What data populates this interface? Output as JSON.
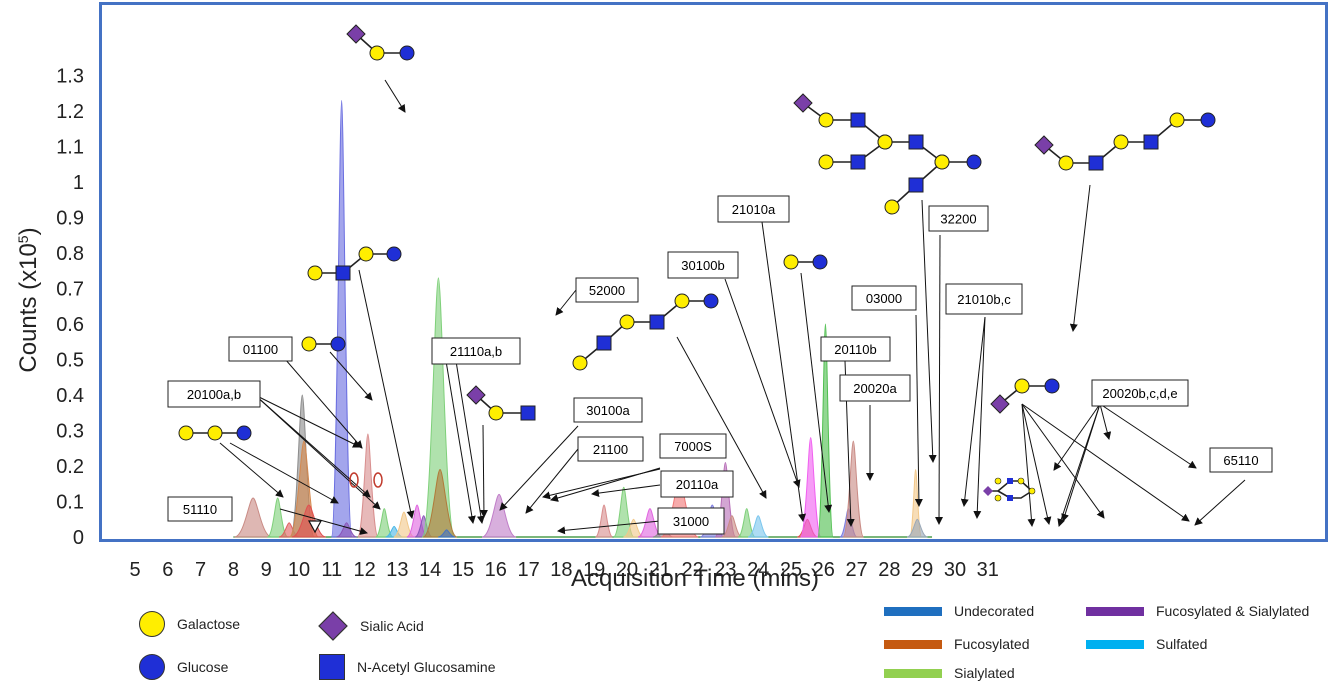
{
  "chart_data": {
    "type": "area",
    "xlabel": "Acquisition Time (mins)",
    "ylabel": "Counts (x10",
    "ylabel_sup": "5",
    "ylabel_end": ")",
    "xlim": [
      5,
      31
    ],
    "ylim": [
      0,
      1.3
    ],
    "x_ticks": [
      "5",
      "6",
      "7",
      "8",
      "9",
      "10",
      "11",
      "12",
      "13",
      "14",
      "15",
      "16",
      "17",
      "18",
      "19",
      "20",
      "21",
      "22",
      "23",
      "24",
      "25",
      "26",
      "27",
      "28",
      "29",
      "30",
      "31"
    ],
    "y_ticks": [
      "0",
      "0.1",
      "0.2",
      "0.3",
      "0.4",
      "0.5",
      "0.6",
      "0.7",
      "0.8",
      "0.9",
      "1",
      "1.1",
      "1.2",
      "1.3"
    ],
    "peaks": [
      {
        "x": 8.6,
        "height": 0.11,
        "width": 0.22,
        "color": "#c98b85"
      },
      {
        "x": 9.35,
        "height": 0.11,
        "width": 0.12,
        "color": "#7fd07a"
      },
      {
        "x": 9.7,
        "height": 0.04,
        "width": 0.12,
        "color": "#e06060"
      },
      {
        "x": 10.1,
        "height": 0.4,
        "width": 0.14,
        "color": "#8c8c8c"
      },
      {
        "x": 10.15,
        "height": 0.27,
        "width": 0.17,
        "color": "#d4894f"
      },
      {
        "x": 10.3,
        "height": 0.09,
        "width": 0.2,
        "color": "#e05050"
      },
      {
        "x": 11.3,
        "height": 1.23,
        "width": 0.12,
        "color": "#6a6ee0"
      },
      {
        "x": 11.45,
        "height": 0.04,
        "width": 0.12,
        "color": "#8a55b8"
      },
      {
        "x": 12.1,
        "height": 0.29,
        "width": 0.12,
        "color": "#d88e8e"
      },
      {
        "x": 12.6,
        "height": 0.08,
        "width": 0.1,
        "color": "#7fd07a"
      },
      {
        "x": 12.9,
        "height": 0.03,
        "width": 0.1,
        "color": "#4ab7e6"
      },
      {
        "x": 13.2,
        "height": 0.07,
        "width": 0.12,
        "color": "#f2c88a"
      },
      {
        "x": 13.6,
        "height": 0.09,
        "width": 0.12,
        "color": "#e065e0"
      },
      {
        "x": 13.8,
        "height": 0.06,
        "width": 0.1,
        "color": "#8a55b8"
      },
      {
        "x": 14.25,
        "height": 0.73,
        "width": 0.19,
        "color": "#7fd07a"
      },
      {
        "x": 14.3,
        "height": 0.19,
        "width": 0.2,
        "color": "#b07a3a"
      },
      {
        "x": 14.5,
        "height": 0.02,
        "width": 0.1,
        "color": "#4472c4"
      },
      {
        "x": 16.1,
        "height": 0.12,
        "width": 0.2,
        "color": "#c07ec8"
      },
      {
        "x": 19.3,
        "height": 0.09,
        "width": 0.1,
        "color": "#d88e8e"
      },
      {
        "x": 19.9,
        "height": 0.14,
        "width": 0.12,
        "color": "#7fd07a"
      },
      {
        "x": 20.2,
        "height": 0.05,
        "width": 0.12,
        "color": "#f2c88a"
      },
      {
        "x": 20.7,
        "height": 0.08,
        "width": 0.14,
        "color": "#e065e0"
      },
      {
        "x": 21.1,
        "height": 0.03,
        "width": 0.12,
        "color": "#8c8c8c"
      },
      {
        "x": 21.6,
        "height": 0.16,
        "width": 0.22,
        "color": "#f07878"
      },
      {
        "x": 22.6,
        "height": 0.09,
        "width": 0.14,
        "color": "#7d7de0"
      },
      {
        "x": 23.0,
        "height": 0.21,
        "width": 0.12,
        "color": "#b86fb8"
      },
      {
        "x": 23.2,
        "height": 0.06,
        "width": 0.12,
        "color": "#c98b85"
      },
      {
        "x": 23.65,
        "height": 0.08,
        "width": 0.1,
        "color": "#7fd07a"
      },
      {
        "x": 24.0,
        "height": 0.06,
        "width": 0.12,
        "color": "#7bc6ee"
      },
      {
        "x": 25.5,
        "height": 0.05,
        "width": 0.12,
        "color": "#e05050"
      },
      {
        "x": 25.6,
        "height": 0.28,
        "width": 0.12,
        "color": "#f060f0"
      },
      {
        "x": 26.05,
        "height": 0.6,
        "width": 0.09,
        "color": "#4fbf4f"
      },
      {
        "x": 26.75,
        "height": 0.08,
        "width": 0.1,
        "color": "#7d7de0"
      },
      {
        "x": 26.9,
        "height": 0.27,
        "width": 0.12,
        "color": "#c98b85"
      },
      {
        "x": 28.8,
        "height": 0.19,
        "width": 0.07,
        "color": "#f2c88a"
      },
      {
        "x": 28.85,
        "height": 0.05,
        "width": 0.12,
        "color": "#9aa8b8"
      }
    ]
  },
  "labels": {
    "l51110": "51110",
    "l20100ab": "20100a,b",
    "l01100": "01100",
    "l21110ab": "21110a,b",
    "l30100a": "30100a",
    "l21100": "21100",
    "l7000S": "7000S",
    "l20110a": "20110a",
    "l31000": "31000",
    "l52000": "52000",
    "l30100b": "30100b",
    "l21010a": "21010a",
    "l20110b": "20110b",
    "l20020a": "20020a",
    "l03000": "03000",
    "l32200": "32200",
    "l21010bc": "21010b,c",
    "l20020bcde": "20020b,c,d,e",
    "l65110": "65110"
  },
  "symbol_legend": {
    "galactose": "Galactose",
    "glucose": "Glucose",
    "sialic": "Sialic Acid",
    "glcnac": "N-Acetyl Glucosamine"
  },
  "color_legend": {
    "undecorated": "Undecorated",
    "fucosylated": "Fucosylated",
    "sialylated": "Sialylated",
    "fuc_sia": "Fucosylated & Sialylated",
    "sulfated": "Sulfated"
  },
  "colors": {
    "galactose": "#ffee00",
    "glucose": "#1f2fd6",
    "sialic": "#7a3fa8",
    "glcnac": "#1f2fd6",
    "undecorated": "#1f6fbf",
    "fucosylated": "#c55a11",
    "sialylated": "#92d050",
    "fuc_sia": "#7030a0",
    "sulfated": "#00b0f0",
    "frame": "#4472c4"
  }
}
